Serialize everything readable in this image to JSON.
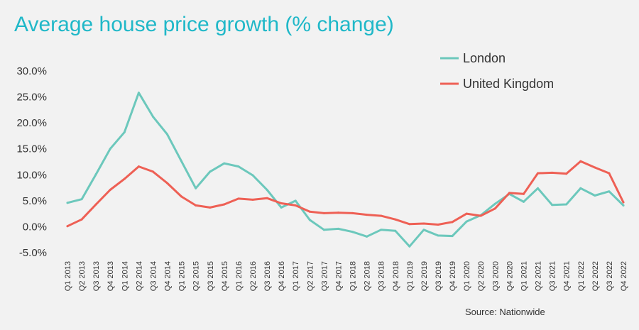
{
  "chart_data": {
    "type": "line",
    "title": "Average house price growth (% change)",
    "source": "Source: Nationwide",
    "xlabel": "",
    "ylabel": "",
    "ylim": [
      -5,
      30
    ],
    "yticks": [
      "-5.0%",
      "0.0%",
      "5.0%",
      "10.0%",
      "15.0%",
      "20.0%",
      "25.0%",
      "30.0%"
    ],
    "ytick_values": [
      -5,
      0,
      5,
      10,
      15,
      20,
      25,
      30
    ],
    "grid": false,
    "legend_position": "top-right",
    "categories": [
      "Q1 2013",
      "Q2 2013",
      "Q3 2013",
      "Q4 2013",
      "Q1 2014",
      "Q2 2014",
      "Q3 2014",
      "Q4 2014",
      "Q1 2015",
      "Q2 2015",
      "Q3 2015",
      "Q4 2015",
      "Q1 2016",
      "Q2 2016",
      "Q3 2016",
      "Q4 2016",
      "Q1 2017",
      "Q2 2017",
      "Q3 2017",
      "Q4 2017",
      "Q1 2018",
      "Q2 2018",
      "Q3 2018",
      "Q4 2018",
      "Q1 2019",
      "Q2 2019",
      "Q3 2019",
      "Q4 2019",
      "Q1 2020",
      "Q2 2020",
      "Q3 2020",
      "Q4 2020",
      "Q1 2021",
      "Q2 2021",
      "Q3 2021",
      "Q4 2021",
      "Q1 2022",
      "Q2 2022",
      "Q3 2022",
      "Q4 2022"
    ],
    "series": [
      {
        "name": "London",
        "color": "#6cc8bc",
        "values": [
          4.6,
          5.3,
          10.1,
          15.0,
          18.2,
          25.8,
          21.2,
          17.8,
          12.6,
          7.4,
          10.6,
          12.2,
          11.6,
          9.9,
          7.1,
          3.7,
          5.0,
          1.3,
          -0.6,
          -0.4,
          -1.0,
          -1.9,
          -0.6,
          -0.8,
          -3.8,
          -0.6,
          -1.7,
          -1.8,
          1.0,
          2.2,
          4.4,
          6.3,
          4.8,
          7.4,
          4.2,
          4.3,
          7.4,
          6.0,
          6.8,
          4.1
        ]
      },
      {
        "name": "United Kingdom",
        "color": "#ee6055",
        "values": [
          0.1,
          1.4,
          4.3,
          7.1,
          9.2,
          11.6,
          10.6,
          8.4,
          5.8,
          4.1,
          3.7,
          4.3,
          5.4,
          5.2,
          5.5,
          4.5,
          4.1,
          2.9,
          2.6,
          2.7,
          2.6,
          2.3,
          2.1,
          1.4,
          0.5,
          0.6,
          0.4,
          0.9,
          2.5,
          2.1,
          3.5,
          6.5,
          6.3,
          10.3,
          10.4,
          10.2,
          12.6,
          11.4,
          10.3,
          4.7
        ]
      }
    ]
  }
}
